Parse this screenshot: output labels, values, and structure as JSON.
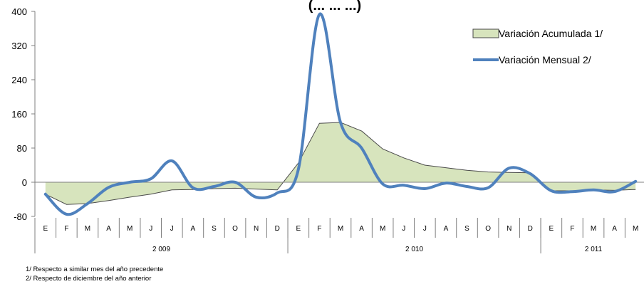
{
  "chart_data": {
    "type": "line",
    "title": "(... ... ...)",
    "ylim": [
      -80,
      400
    ],
    "yticks": [
      -80,
      0,
      80,
      160,
      240,
      320,
      400
    ],
    "grid": false,
    "legend_position": "top-right",
    "month_labels": [
      "E",
      "F",
      "M",
      "A",
      "M",
      "J",
      "J",
      "A",
      "S",
      "O",
      "N",
      "D",
      "E",
      "F",
      "M",
      "A",
      "M",
      "J",
      "J",
      "A",
      "S",
      "O",
      "N",
      "D",
      "E",
      "F",
      "M",
      "A",
      "M"
    ],
    "year_groups": [
      {
        "label": "2 009",
        "count": 12
      },
      {
        "label": "2 010",
        "count": 12
      },
      {
        "label": "2 011",
        "count": 5
      }
    ],
    "series": [
      {
        "name": "Variación Acumulada 1/",
        "kind": "area",
        "color": "#d7e4bd",
        "stroke": "#4a4a4a",
        "values": [
          -28,
          -52,
          -50,
          -43,
          -35,
          -28,
          -18,
          -17,
          -15,
          -14,
          -16,
          -18,
          45,
          138,
          140,
          120,
          78,
          57,
          40,
          34,
          28,
          24,
          23,
          22,
          -20,
          -20,
          -18,
          -19,
          -17
        ]
      },
      {
        "name": "Variación Mensual 2/",
        "kind": "line",
        "color": "#4f81bd",
        "values": [
          -28,
          -75,
          -50,
          -12,
          0,
          8,
          50,
          -13,
          -10,
          0,
          -35,
          -25,
          30,
          393,
          140,
          80,
          -4,
          -7,
          -15,
          -2,
          -10,
          -13,
          33,
          20,
          -20,
          -22,
          -18,
          -22,
          2
        ]
      }
    ]
  },
  "notes": [
    "1/ Respecto a similar mes del año precedente",
    "2/ Respecto de diciembre del año anterior"
  ]
}
